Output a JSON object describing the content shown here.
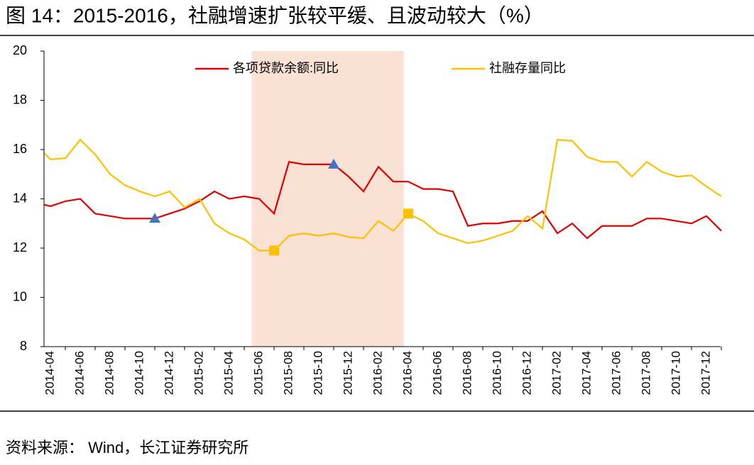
{
  "chart_data": {
    "type": "line",
    "title": "图 14：2015-2016，社融增速扩张较平缓、且波动较大（%）",
    "source": "资料来源： Wind，长江证券研究所",
    "categories": [
      null,
      "2014-04",
      null,
      "2014-06",
      null,
      "2014-08",
      null,
      "2014-10",
      null,
      "2014-12",
      null,
      "2015-02",
      null,
      "2015-04",
      null,
      "2015-06",
      null,
      "2015-08",
      null,
      "2015-10",
      null,
      "2015-12",
      null,
      "2016-02",
      null,
      "2016-04",
      null,
      "2016-06",
      null,
      "2016-08",
      null,
      "2016-10",
      null,
      "2016-12",
      null,
      "2017-02",
      null,
      "2017-04",
      null,
      "2017-06",
      null,
      "2017-08",
      null,
      "2017-10",
      null,
      "2017-12",
      null
    ],
    "series": [
      {
        "name": "各项贷款余额:同比",
        "color": "#e00000",
        "marker_color": "#4472c4",
        "marker": "triangle",
        "highlight_points": [
          8,
          20
        ],
        "values": [
          13.85,
          13.7,
          13.9,
          14.0,
          13.4,
          13.3,
          13.2,
          13.2,
          13.2,
          13.4,
          13.6,
          13.9,
          14.3,
          14.0,
          14.1,
          14.0,
          13.4,
          15.5,
          15.4,
          15.4,
          15.4,
          14.9,
          14.3,
          15.3,
          14.7,
          14.7,
          14.4,
          14.4,
          14.3,
          12.9,
          13.0,
          13.0,
          13.1,
          13.1,
          13.5,
          12.6,
          13.0,
          12.4,
          12.9,
          12.9,
          12.9,
          13.2,
          13.2,
          13.1,
          13.0,
          13.3,
          12.7
        ]
      },
      {
        "name": "社融存量同比",
        "color": "#ffc000",
        "marker_color": "#ffc000",
        "marker": "square",
        "highlight_points": [
          16,
          25
        ],
        "values": [
          16.2,
          15.6,
          15.65,
          16.4,
          15.8,
          15.0,
          14.55,
          14.3,
          14.1,
          14.3,
          13.65,
          14.0,
          13.0,
          12.6,
          12.35,
          11.9,
          11.9,
          12.5,
          12.6,
          12.5,
          12.6,
          12.45,
          12.4,
          13.1,
          12.7,
          13.4,
          13.1,
          12.6,
          12.4,
          12.2,
          12.3,
          12.5,
          12.7,
          13.3,
          12.8,
          16.4,
          16.35,
          15.7,
          15.5,
          15.5,
          14.9,
          15.5,
          15.1,
          14.9,
          14.95,
          14.5,
          14.1
        ]
      }
    ],
    "shade": {
      "from": 14.5,
      "to": 24.7,
      "color": "#f9e1d3"
    },
    "ylim": [
      8,
      20
    ],
    "yticks": [
      8,
      10,
      12,
      14,
      16,
      18,
      20
    ]
  }
}
